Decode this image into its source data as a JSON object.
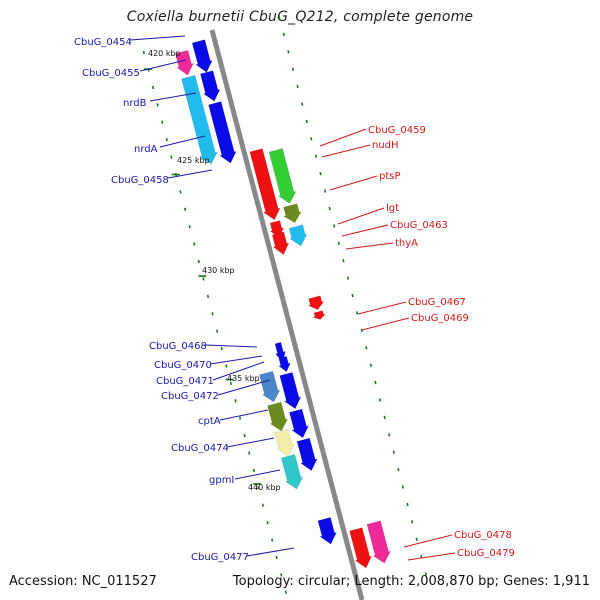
{
  "header": {
    "title": "Coxiella burnetii CbuG_Q212, complete genome"
  },
  "footer": {
    "accession": "Accession: NC_011527",
    "summary": "Topology: circular; Length: 2,008,870 bp; Genes: 1,911"
  },
  "colors": {
    "backbone": "#888888",
    "blue": "#0a0ae6",
    "red": "#ee1111",
    "label_blue": "#1a1aa6",
    "label_red": "#d21818",
    "tick": "#1a7a1a",
    "magenta": "#ee2a9a",
    "cyan": "#22ccee",
    "green": "#33cc33",
    "olive": "#6b8a1f",
    "steel": "#4a86c8",
    "cream": "#f5eba8",
    "teal": "#2fc7c7",
    "lightblue": "#22bbee"
  },
  "scale_labels": [
    "420 kbp",
    "425 kbp",
    "430 kbp",
    "435 kbp",
    "440 kbp"
  ],
  "gene_labels": {
    "left": [
      "CbuG_0454",
      "CbuG_0455",
      "nrdB",
      "nrdA",
      "CbuG_0458",
      "CbuG_0468",
      "CbuG_0470",
      "CbuG_0471",
      "CbuG_0472",
      "cptA",
      "CbuG_0474",
      "gpmI",
      "CbuG_0477"
    ],
    "right": [
      "CbuG_0459",
      "nudH",
      "ptsP",
      "lgt",
      "CbuG_0463",
      "thyA",
      "CbuG_0467",
      "CbuG_0469",
      "CbuG_0478",
      "CbuG_0479"
    ]
  }
}
